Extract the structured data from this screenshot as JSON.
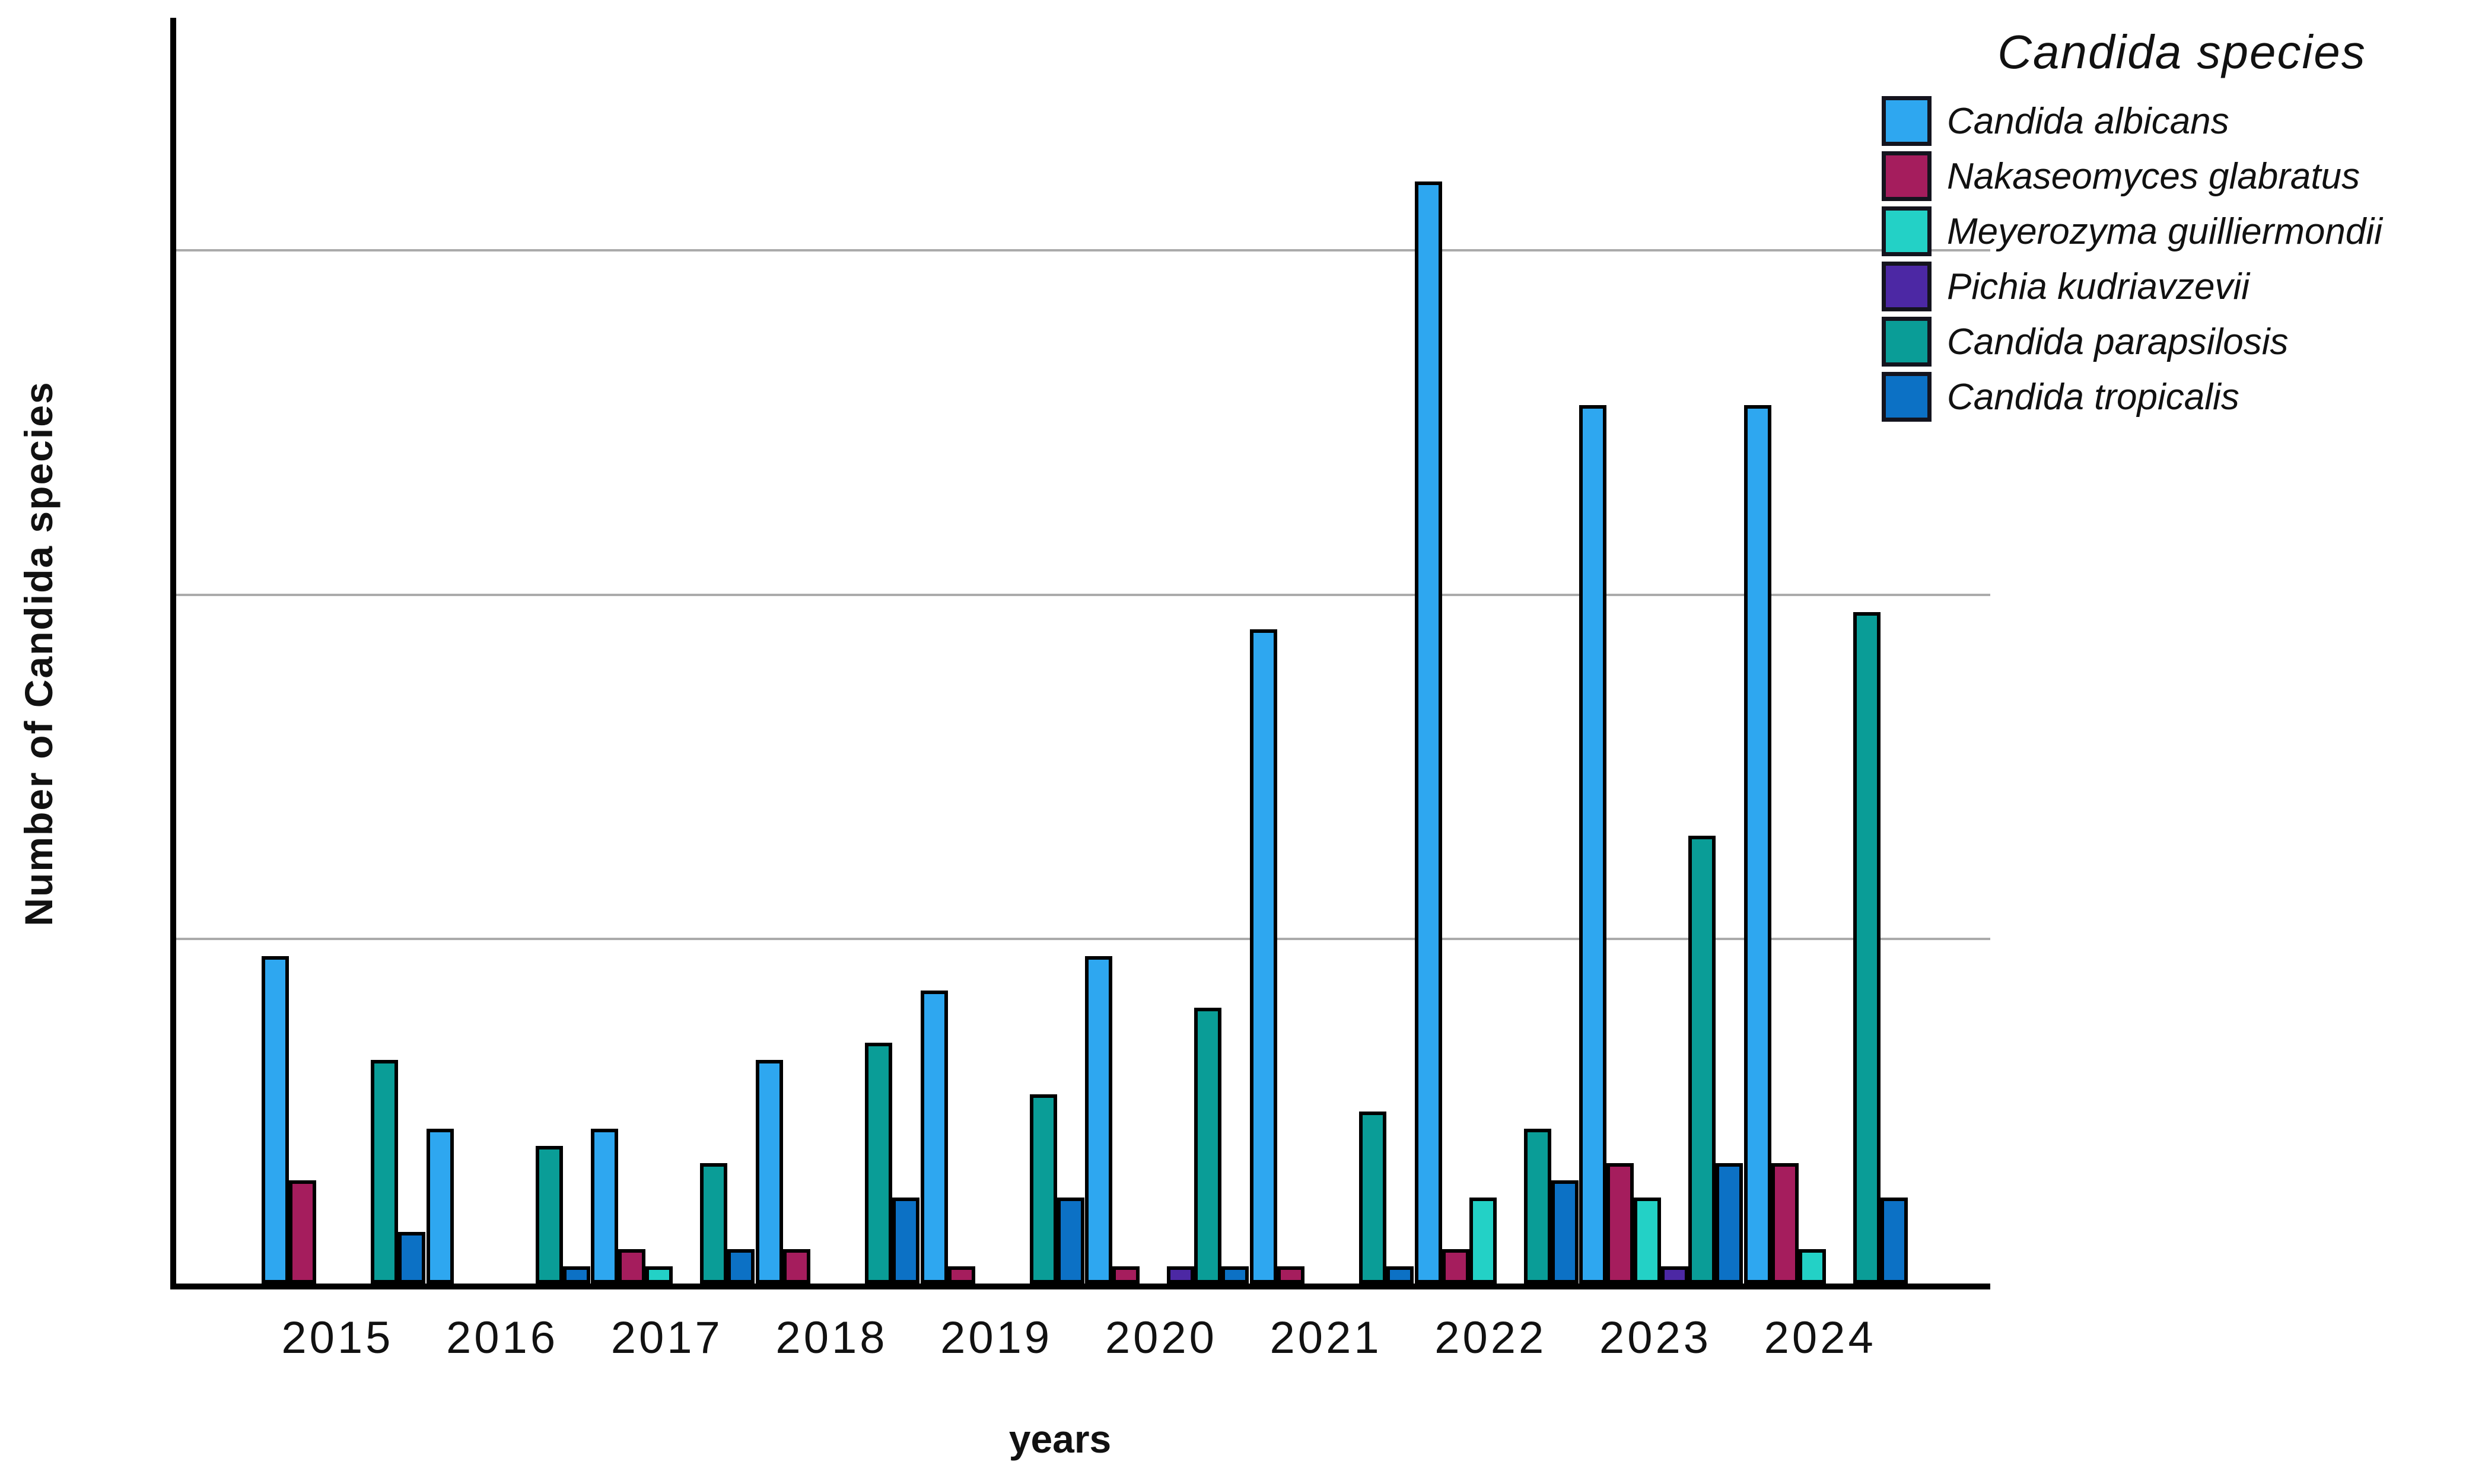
{
  "chart_data": {
    "type": "bar",
    "title": "",
    "xlabel": "years",
    "ylabel": "Number of Candida species",
    "categories": [
      "2015",
      "2016",
      "2017",
      "2018",
      "2019",
      "2020",
      "2021",
      "2022",
      "2023",
      "2024"
    ],
    "series": [
      {
        "name": "Candida albicans",
        "color": "#2ea7f0",
        "values": [
          19,
          9,
          9,
          13,
          17,
          19,
          38,
          64,
          51,
          51
        ]
      },
      {
        "name": "Nakaseomyces glabratus",
        "color": "#a51d5d",
        "values": [
          6,
          0,
          2,
          2,
          1,
          1,
          1,
          2,
          7,
          7
        ]
      },
      {
        "name": "Meyerozyma guilliermondii",
        "color": "#23d1c6",
        "values": [
          0,
          0,
          1,
          0,
          0,
          0,
          0,
          5,
          5,
          2
        ]
      },
      {
        "name": "Pichia kudriavzevii",
        "color": "#4c28a4",
        "values": [
          0,
          0,
          0,
          0,
          0,
          1,
          0,
          0,
          1,
          0
        ]
      },
      {
        "name": "Candida parapsilosis",
        "color": "#0a9d97",
        "values": [
          13,
          8,
          7,
          14,
          11,
          16,
          10,
          9,
          26,
          39
        ]
      },
      {
        "name": "Candida tropicalis",
        "color": "#0c71c5",
        "values": [
          3,
          1,
          2,
          5,
          5,
          1,
          1,
          6,
          7,
          5
        ]
      }
    ],
    "yticks": [
      0,
      20,
      40,
      60
    ],
    "ylim": [
      0,
      73.5
    ],
    "grid": true,
    "gridline_color": "#ababab",
    "legend": {
      "title": "Candida species",
      "position": "top-right"
    }
  }
}
